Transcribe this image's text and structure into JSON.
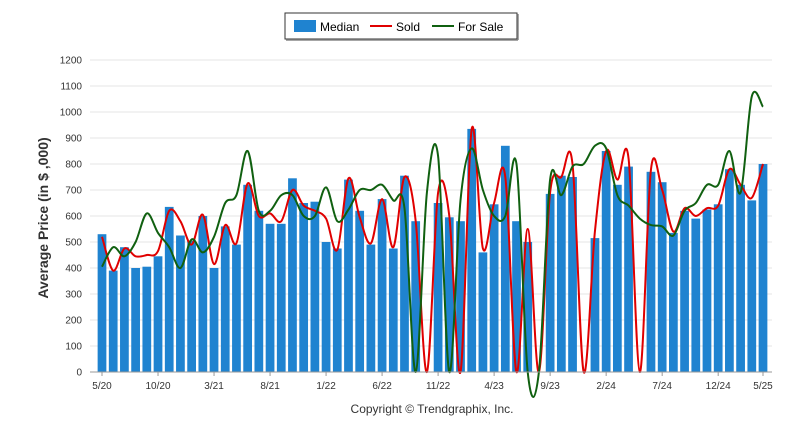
{
  "chart_data": {
    "type": "bar",
    "ylabel": "Average Price (in $ ,000)",
    "ylim": [
      0,
      1200
    ],
    "yticks": [
      0,
      100,
      200,
      300,
      400,
      500,
      600,
      700,
      800,
      900,
      1000,
      1100,
      1200
    ],
    "xtick_labels": [
      "5/20",
      "10/20",
      "3/21",
      "8/21",
      "1/22",
      "6/22",
      "11/22",
      "4/23",
      "9/23",
      "2/24",
      "7/24",
      "12/24",
      "5/25"
    ],
    "grid": true,
    "legend_position": "top-center",
    "colors": {
      "median": "#1f83d0",
      "sold": "#e00000",
      "for_sale": "#106010"
    },
    "series": [
      {
        "name": "Median",
        "type": "bar",
        "values": [
          530,
          390,
          480,
          400,
          405,
          445,
          635,
          525,
          505,
          600,
          400,
          560,
          490,
          720,
          620,
          570,
          570,
          745,
          650,
          655,
          500,
          475,
          740,
          620,
          490,
          665,
          475,
          755,
          580,
          0,
          650,
          595,
          580,
          935,
          460,
          645,
          870,
          580,
          500,
          0,
          685,
          755,
          750,
          0,
          515,
          850,
          720,
          790,
          0,
          770,
          730,
          535,
          620,
          590,
          625,
          645,
          780,
          720,
          660,
          800
        ]
      },
      {
        "name": "Sold",
        "type": "line",
        "values": [
          520,
          390,
          475,
          445,
          450,
          465,
          620,
          580,
          490,
          605,
          415,
          565,
          495,
          725,
          600,
          610,
          580,
          700,
          640,
          620,
          590,
          470,
          745,
          595,
          495,
          665,
          480,
          750,
          580,
          0,
          690,
          600,
          0,
          935,
          475,
          650,
          750,
          0,
          550,
          0,
          690,
          750,
          800,
          0,
          540,
          850,
          740,
          820,
          0,
          780,
          700,
          540,
          630,
          600,
          630,
          640,
          780,
          720,
          670,
          800
        ]
      },
      {
        "name": "For Sale",
        "type": "line",
        "values": [
          405,
          480,
          445,
          500,
          610,
          535,
          480,
          400,
          510,
          460,
          520,
          650,
          680,
          850,
          620,
          620,
          680,
          680,
          600,
          600,
          710,
          580,
          625,
          700,
          700,
          720,
          660,
          630,
          0,
          690,
          830,
          0,
          660,
          860,
          700,
          600,
          600,
          800,
          0,
          0,
          740,
          680,
          790,
          800,
          870,
          860,
          680,
          640,
          590,
          565,
          560,
          525,
          620,
          650,
          720,
          720,
          850,
          690,
          1060,
          1020
        ]
      }
    ]
  },
  "footer": {
    "copyright": "Copyright © Trendgraphix, Inc."
  }
}
